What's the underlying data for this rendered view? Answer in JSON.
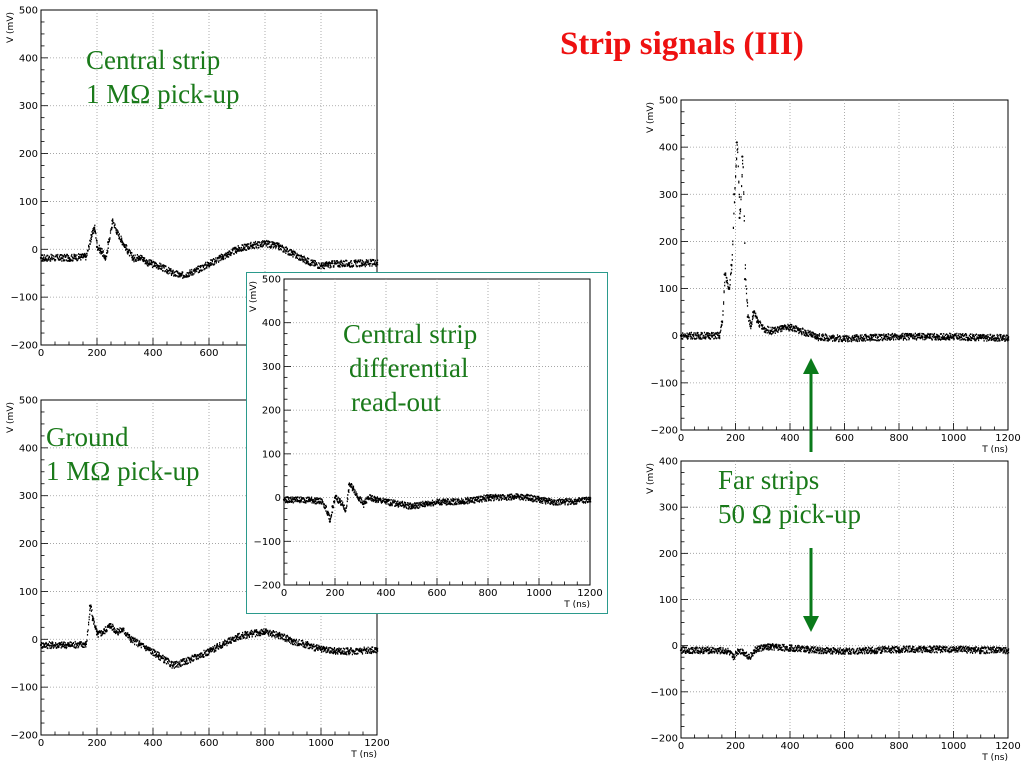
{
  "slide": {
    "title": "Strip signals (III)",
    "annotations": {
      "central_strip_1": [
        "Central strip",
        "1 MΩ pick-up"
      ],
      "ground": [
        "Ground",
        "1 MΩ pick-up"
      ],
      "central_differential": [
        "Central strip",
        "differential",
        "read-out"
      ],
      "far_strips": [
        "Far strips",
        "50 Ω pick-up"
      ]
    },
    "colors": {
      "title": "#ee1111",
      "annotation": "#1a7a1a",
      "arrow": "#0a7a1a",
      "inset_border": "#2b9a8c"
    },
    "icons": [
      "up-arrow-icon",
      "down-arrow-icon"
    ]
  },
  "chart_data": [
    {
      "id": "central-1mohm",
      "type": "scatter",
      "title": "",
      "xlabel": "T (ns)",
      "ylabel": "V (mV)",
      "xlim": [
        0,
        1200
      ],
      "ylim": [
        -200,
        500
      ],
      "xticks": [
        0,
        200,
        400,
        600
      ],
      "yticks": [
        -200,
        -100,
        0,
        100,
        200,
        300,
        400,
        500
      ],
      "grid": true,
      "points": [
        [
          0,
          -18
        ],
        [
          100,
          -18
        ],
        [
          160,
          -15
        ],
        [
          180,
          30
        ],
        [
          190,
          45
        ],
        [
          200,
          5
        ],
        [
          215,
          -5
        ],
        [
          230,
          -20
        ],
        [
          240,
          15
        ],
        [
          255,
          60
        ],
        [
          270,
          35
        ],
        [
          290,
          15
        ],
        [
          310,
          -5
        ],
        [
          330,
          -20
        ],
        [
          350,
          -15
        ],
        [
          380,
          -28
        ],
        [
          420,
          -35
        ],
        [
          470,
          -50
        ],
        [
          500,
          -55
        ],
        [
          550,
          -45
        ],
        [
          600,
          -30
        ],
        [
          650,
          -15
        ],
        [
          700,
          0
        ],
        [
          750,
          8
        ],
        [
          800,
          12
        ],
        [
          850,
          5
        ],
        [
          900,
          -10
        ],
        [
          950,
          -25
        ],
        [
          1000,
          -35
        ],
        [
          1050,
          -30
        ],
        [
          1100,
          -30
        ],
        [
          1200,
          -28
        ]
      ]
    },
    {
      "id": "ground-1mohm",
      "type": "scatter",
      "title": "",
      "xlabel": "T (ns)",
      "ylabel": "V (mV)",
      "xlim": [
        0,
        1200
      ],
      "ylim": [
        -200,
        500
      ],
      "xticks": [
        0,
        200,
        400,
        600,
        800,
        1000,
        1200
      ],
      "yticks": [
        -200,
        -100,
        0,
        100,
        200,
        300,
        400,
        500
      ],
      "grid": true,
      "points": [
        [
          0,
          -12
        ],
        [
          100,
          -12
        ],
        [
          160,
          -10
        ],
        [
          175,
          70
        ],
        [
          185,
          40
        ],
        [
          200,
          10
        ],
        [
          220,
          15
        ],
        [
          245,
          30
        ],
        [
          270,
          15
        ],
        [
          290,
          20
        ],
        [
          320,
          0
        ],
        [
          350,
          -10
        ],
        [
          380,
          -20
        ],
        [
          420,
          -35
        ],
        [
          470,
          -55
        ],
        [
          520,
          -45
        ],
        [
          600,
          -25
        ],
        [
          650,
          -10
        ],
        [
          700,
          5
        ],
        [
          750,
          12
        ],
        [
          800,
          15
        ],
        [
          850,
          8
        ],
        [
          900,
          -5
        ],
        [
          950,
          -12
        ],
        [
          1000,
          -22
        ],
        [
          1050,
          -25
        ],
        [
          1100,
          -25
        ],
        [
          1200,
          -22
        ]
      ]
    },
    {
      "id": "central-differential",
      "type": "scatter",
      "title": "",
      "xlabel": "T (ns)",
      "ylabel": "V (mV)",
      "xlim": [
        0,
        1200
      ],
      "ylim": [
        -200,
        500
      ],
      "xticks": [
        0,
        200,
        400,
        600,
        800,
        1000,
        1200
      ],
      "yticks": [
        -200,
        -100,
        0,
        100,
        200,
        300,
        400,
        500
      ],
      "grid": true,
      "points": [
        [
          0,
          -5
        ],
        [
          100,
          -5
        ],
        [
          150,
          -10
        ],
        [
          170,
          -35
        ],
        [
          180,
          -55
        ],
        [
          190,
          -20
        ],
        [
          200,
          0
        ],
        [
          220,
          -10
        ],
        [
          240,
          -30
        ],
        [
          255,
          30
        ],
        [
          270,
          20
        ],
        [
          290,
          0
        ],
        [
          310,
          -15
        ],
        [
          330,
          0
        ],
        [
          360,
          -5
        ],
        [
          400,
          -10
        ],
        [
          450,
          -15
        ],
        [
          500,
          -20
        ],
        [
          550,
          -15
        ],
        [
          600,
          -10
        ],
        [
          650,
          -10
        ],
        [
          700,
          -8
        ],
        [
          750,
          -5
        ],
        [
          800,
          0
        ],
        [
          850,
          0
        ],
        [
          900,
          2
        ],
        [
          950,
          0
        ],
        [
          1000,
          -5
        ],
        [
          1050,
          -10
        ],
        [
          1100,
          -10
        ],
        [
          1150,
          -8
        ],
        [
          1200,
          -5
        ]
      ]
    },
    {
      "id": "far-strips-upper",
      "type": "scatter",
      "title": "",
      "xlabel": "T (ns)",
      "ylabel": "V (mV)",
      "xlim": [
        0,
        1200
      ],
      "ylim": [
        -200,
        500
      ],
      "xticks": [
        0,
        200,
        400,
        600,
        800,
        1000,
        1200
      ],
      "yticks": [
        -200,
        -100,
        0,
        100,
        200,
        300,
        400,
        500
      ],
      "grid": true,
      "points": [
        [
          0,
          0
        ],
        [
          100,
          0
        ],
        [
          140,
          0
        ],
        [
          150,
          30
        ],
        [
          160,
          130
        ],
        [
          175,
          100
        ],
        [
          185,
          150
        ],
        [
          195,
          300
        ],
        [
          205,
          410
        ],
        [
          215,
          250
        ],
        [
          225,
          380
        ],
        [
          235,
          120
        ],
        [
          245,
          40
        ],
        [
          255,
          20
        ],
        [
          265,
          50
        ],
        [
          280,
          30
        ],
        [
          300,
          15
        ],
        [
          330,
          10
        ],
        [
          370,
          15
        ],
        [
          400,
          18
        ],
        [
          430,
          12
        ],
        [
          460,
          5
        ],
        [
          500,
          -3
        ],
        [
          600,
          -6
        ],
        [
          700,
          -4
        ],
        [
          800,
          -2
        ],
        [
          900,
          -2
        ],
        [
          1000,
          -2
        ],
        [
          1100,
          -4
        ],
        [
          1200,
          -5
        ]
      ]
    },
    {
      "id": "far-strips-lower",
      "type": "scatter",
      "title": "",
      "xlabel": "T (ns)",
      "ylabel": "V (mV)",
      "xlim": [
        0,
        1200
      ],
      "ylim": [
        -200,
        400
      ],
      "xticks": [
        0,
        200,
        400,
        600,
        800,
        1000,
        1200
      ],
      "yticks": [
        -200,
        -100,
        0,
        100,
        200,
        300,
        400
      ],
      "grid": true,
      "points": [
        [
          0,
          -10
        ],
        [
          100,
          -10
        ],
        [
          170,
          -12
        ],
        [
          190,
          -25
        ],
        [
          210,
          -10
        ],
        [
          230,
          -15
        ],
        [
          250,
          -25
        ],
        [
          270,
          -10
        ],
        [
          290,
          -5
        ],
        [
          330,
          -3
        ],
        [
          400,
          -5
        ],
        [
          500,
          -10
        ],
        [
          600,
          -12
        ],
        [
          700,
          -10
        ],
        [
          800,
          -8
        ],
        [
          900,
          -8
        ],
        [
          1000,
          -8
        ],
        [
          1100,
          -10
        ],
        [
          1200,
          -10
        ]
      ]
    }
  ]
}
